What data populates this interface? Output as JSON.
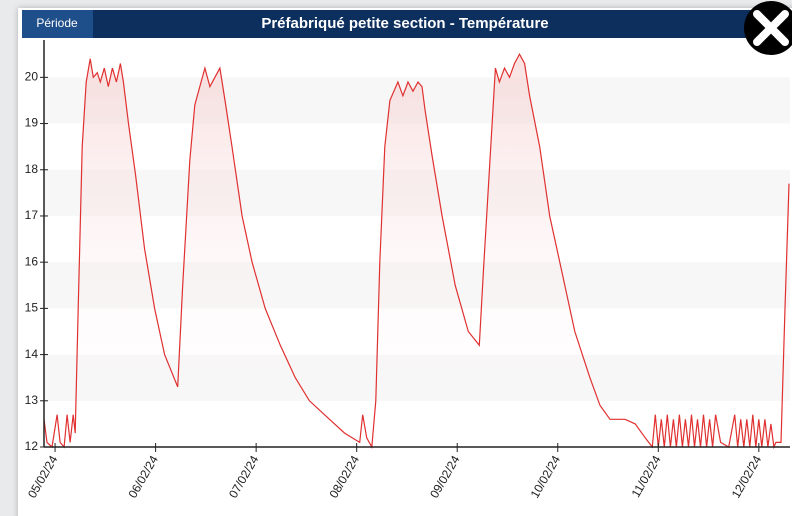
{
  "header": {
    "button": "Période"
  },
  "chart_data": {
    "type": "line",
    "title": "Préfabriqué petite section - Température",
    "x": [
      -0.11,
      -0.08,
      -0.03,
      0.02,
      0.05,
      0.09,
      0.12,
      0.15,
      0.18,
      0.2,
      0.23,
      0.27,
      0.31,
      0.35,
      0.38,
      0.42,
      0.45,
      0.49,
      0.53,
      0.57,
      0.61,
      0.65,
      0.68,
      0.73,
      0.8,
      0.89,
      0.99,
      1.09,
      1.22,
      1.27,
      1.34,
      1.39,
      1.44,
      1.49,
      1.54,
      1.59,
      1.64,
      1.69,
      1.76,
      1.86,
      1.96,
      2.09,
      2.24,
      2.39,
      2.53,
      2.73,
      2.88,
      3.03,
      3.06,
      3.1,
      3.15,
      3.19,
      3.23,
      3.28,
      3.33,
      3.41,
      3.46,
      3.51,
      3.56,
      3.61,
      3.65,
      3.68,
      3.75,
      3.85,
      3.98,
      4.11,
      4.22,
      4.26,
      4.32,
      4.38,
      4.42,
      4.47,
      4.52,
      4.57,
      4.62,
      4.67,
      4.72,
      4.82,
      4.92,
      5.02,
      5.17,
      5.32,
      5.42,
      5.52,
      5.67,
      5.77,
      5.87,
      5.94,
      5.97,
      6.0,
      6.03,
      6.06,
      6.09,
      6.12,
      6.15,
      6.18,
      6.21,
      6.24,
      6.27,
      6.3,
      6.33,
      6.36,
      6.39,
      6.42,
      6.45,
      6.48,
      6.51,
      6.54,
      6.57,
      6.62,
      6.7,
      6.76,
      6.79,
      6.82,
      6.85,
      6.88,
      6.91,
      6.94,
      6.97,
      7.0,
      7.03,
      7.06,
      7.09,
      7.12,
      7.15,
      7.17,
      7.22,
      7.26,
      7.3
    ],
    "series": [
      {
        "color": "#e03030",
        "values": [
          12.6,
          12.1,
          12.0,
          12.7,
          12.1,
          12.0,
          12.7,
          12.1,
          12.7,
          12.3,
          15.0,
          18.5,
          19.9,
          20.4,
          20.0,
          20.1,
          19.9,
          20.2,
          19.8,
          20.2,
          19.9,
          20.3,
          19.9,
          19.0,
          17.9,
          16.3,
          15.0,
          14.0,
          13.3,
          15.5,
          18.2,
          19.4,
          19.8,
          20.2,
          19.8,
          20.0,
          20.2,
          19.5,
          18.5,
          17.0,
          16.0,
          15.0,
          14.2,
          13.5,
          13.0,
          12.6,
          12.3,
          12.1,
          12.7,
          12.2,
          12.0,
          13.0,
          16.0,
          18.5,
          19.5,
          19.9,
          19.6,
          19.9,
          19.7,
          19.9,
          19.8,
          19.3,
          18.3,
          17.0,
          15.5,
          14.5,
          14.2,
          15.8,
          18.0,
          20.2,
          19.9,
          20.2,
          20.0,
          20.3,
          20.5,
          20.3,
          19.6,
          18.5,
          17.0,
          16.0,
          14.5,
          13.5,
          12.9,
          12.6,
          12.6,
          12.5,
          12.2,
          12.0,
          12.7,
          12.0,
          12.6,
          12.0,
          12.7,
          12.0,
          12.6,
          12.0,
          12.7,
          12.0,
          12.6,
          12.0,
          12.7,
          12.0,
          12.6,
          12.0,
          12.7,
          12.0,
          12.6,
          12.0,
          12.7,
          12.1,
          12.0,
          12.7,
          12.0,
          12.6,
          12.0,
          12.6,
          12.0,
          12.7,
          12.0,
          12.6,
          12.0,
          12.6,
          12.0,
          12.5,
          12.0,
          12.1,
          12.1,
          15.0,
          17.7
        ]
      }
    ],
    "xlim": [
      -0.11,
      7.31
    ],
    "xticks": [
      {
        "value": 0,
        "label": "05/02/24"
      },
      {
        "value": 1,
        "label": "06/02/24"
      },
      {
        "value": 2,
        "label": "07/02/24"
      },
      {
        "value": 3,
        "label": "08/02/24"
      },
      {
        "value": 4,
        "label": "09/02/24"
      },
      {
        "value": 5,
        "label": "10/02/24"
      },
      {
        "value": 6,
        "label": "11/02/24"
      },
      {
        "value": 7,
        "label": "12/02/24"
      }
    ],
    "ylim": [
      12,
      20.7
    ],
    "yticks": [
      12,
      13,
      14,
      15,
      16,
      17,
      18,
      19,
      20
    ]
  }
}
